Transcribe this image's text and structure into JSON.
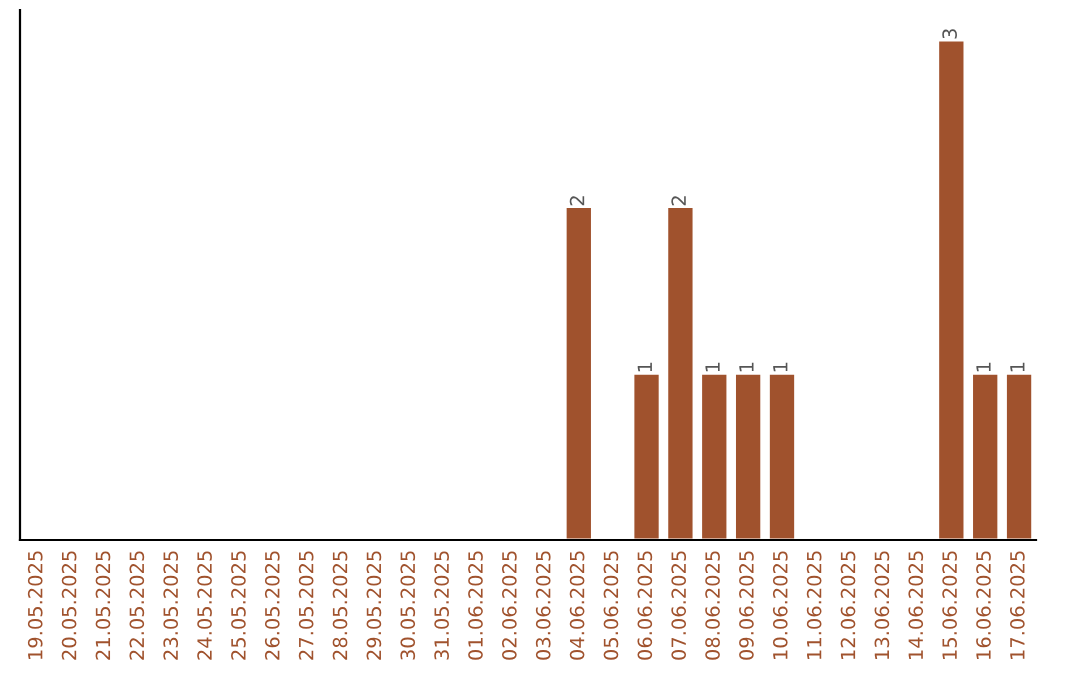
{
  "chart_data": {
    "type": "bar",
    "categories": [
      "19.05.2025",
      "20.05.2025",
      "21.05.2025",
      "22.05.2025",
      "23.05.2025",
      "24.05.2025",
      "25.05.2025",
      "26.05.2025",
      "27.05.2025",
      "28.05.2025",
      "29.05.2025",
      "30.05.2025",
      "31.05.2025",
      "01.06.2025",
      "02.06.2025",
      "03.06.2025",
      "04.06.2025",
      "05.06.2025",
      "06.06.2025",
      "07.06.2025",
      "08.06.2025",
      "09.06.2025",
      "10.06.2025",
      "11.06.2025",
      "12.06.2025",
      "13.06.2025",
      "14.06.2025",
      "15.06.2025",
      "16.06.2025",
      "17.06.2025"
    ],
    "values": [
      null,
      null,
      null,
      null,
      null,
      null,
      null,
      null,
      null,
      null,
      null,
      null,
      null,
      null,
      null,
      null,
      2,
      null,
      1,
      2,
      1,
      1,
      1,
      null,
      null,
      null,
      null,
      3,
      1,
      1
    ],
    "data_labels": true,
    "color": "#a0522d",
    "ylim": [
      0,
      3.18
    ],
    "tick_labels": "x",
    "grid": false,
    "legend": false
  }
}
